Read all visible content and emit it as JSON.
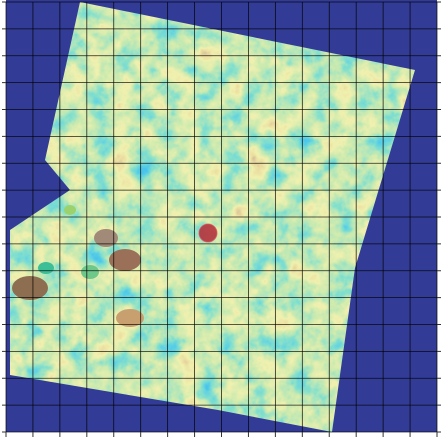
{
  "map": {
    "background_color": "#ffffff",
    "nodata_color": "#323c96",
    "grid_color": "#000000",
    "marker_color": "#b4323c",
    "grid": {
      "columns": 16,
      "rows": 16,
      "visible": true
    },
    "colormap": [
      "#283c9b",
      "#1e50c8",
      "#0a78dc",
      "#19a0c8",
      "#3cbe96",
      "#96d26e",
      "#e1e16e",
      "#d2b45a",
      "#9b6e50",
      "#a08c82",
      "#c3b4aa"
    ],
    "has_marker": true,
    "tick_labels_rendered": false
  }
}
